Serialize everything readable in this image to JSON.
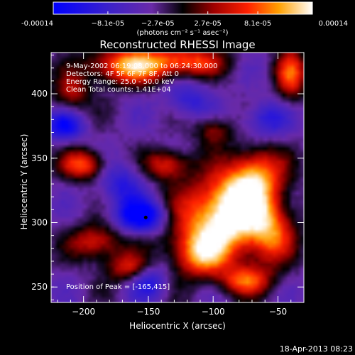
{
  "chart_data": {
    "type": "heatmap",
    "title": "Reconstructed RHESSI Image",
    "xlabel": "Heliocentric X (arcsec)",
    "ylabel": "Heliocentric Y (arcsec)",
    "xlim": [
      -225,
      -30
    ],
    "ylim": [
      238,
      432
    ],
    "x_ticks": [
      -200,
      -150,
      -100,
      -50
    ],
    "y_ticks": [
      250,
      300,
      350,
      400
    ],
    "colorbar": {
      "min": -0.00014,
      "max": 0.00014,
      "tick_labels": [
        "-0.00014",
        "−8.1e-05",
        "−2.7e-05",
        "2.7e-05",
        "8.1e-05",
        "0.00014"
      ],
      "tick_values": [
        -0.00014,
        -8.1e-05,
        -2.7e-05,
        2.7e-05,
        8.1e-05,
        0.00014
      ],
      "unit_label": "(photons cm⁻² s⁻¹ asec⁻²)"
    },
    "annotations": {
      "time_range": "9-May-2002 06:19:08.000 to 06:24:30.000",
      "detectors": "Detectors: 4F 5F 6F 7F 8F, Att 0",
      "energy": "Energy Range: 25.0 - 50.0 keV",
      "clean": "Clean   Total counts: 1.41E+04",
      "peak": "Position of Peak = [-165,415]"
    },
    "marker_point": {
      "x": -152,
      "y": 304
    },
    "blobs": [
      {
        "x": -95,
        "y": 300,
        "sx": 28,
        "sy": 22,
        "v": 1.05
      },
      {
        "x": -78,
        "y": 318,
        "sx": 18,
        "sy": 18,
        "v": 0.85
      },
      {
        "x": -110,
        "y": 275,
        "sx": 14,
        "sy": 12,
        "v": 0.75
      },
      {
        "x": -65,
        "y": 340,
        "sx": 14,
        "sy": 14,
        "v": 0.7
      },
      {
        "x": -55,
        "y": 290,
        "sx": 12,
        "sy": 16,
        "v": 0.6
      },
      {
        "x": -165,
        "y": 422,
        "sx": 22,
        "sy": 10,
        "v": 1.05
      },
      {
        "x": -120,
        "y": 425,
        "sx": 20,
        "sy": 8,
        "v": 0.8
      },
      {
        "x": -40,
        "y": 415,
        "sx": 8,
        "sy": 14,
        "v": 0.8
      },
      {
        "x": -200,
        "y": 345,
        "sx": 12,
        "sy": 8,
        "v": 0.85
      },
      {
        "x": -135,
        "y": 345,
        "sx": 12,
        "sy": 8,
        "v": 0.7
      },
      {
        "x": -190,
        "y": 285,
        "sx": 14,
        "sy": 10,
        "v": 0.7
      },
      {
        "x": -165,
        "y": 265,
        "sx": 12,
        "sy": 8,
        "v": 0.65
      },
      {
        "x": -75,
        "y": 255,
        "sx": 14,
        "sy": 8,
        "v": 0.75
      },
      {
        "x": -210,
        "y": 400,
        "sx": 10,
        "sy": 10,
        "v": 0.55
      },
      {
        "x": -100,
        "y": 372,
        "sx": 10,
        "sy": 8,
        "v": 0.5
      },
      {
        "x": -155,
        "y": 305,
        "sx": 14,
        "sy": 9,
        "v": -1.0
      },
      {
        "x": -215,
        "y": 375,
        "sx": 10,
        "sy": 8,
        "v": -0.7
      },
      {
        "x": -170,
        "y": 330,
        "sx": 12,
        "sy": 12,
        "v": -0.5
      },
      {
        "x": -150,
        "y": 255,
        "sx": 10,
        "sy": 10,
        "v": -0.55
      },
      {
        "x": -60,
        "y": 380,
        "sx": 12,
        "sy": 10,
        "v": -0.5
      },
      {
        "x": -120,
        "y": 395,
        "sx": 12,
        "sy": 10,
        "v": -0.45
      }
    ],
    "background_level": -0.25
  },
  "footer": {
    "timestamp": "18-Apr-2013 08:23"
  }
}
